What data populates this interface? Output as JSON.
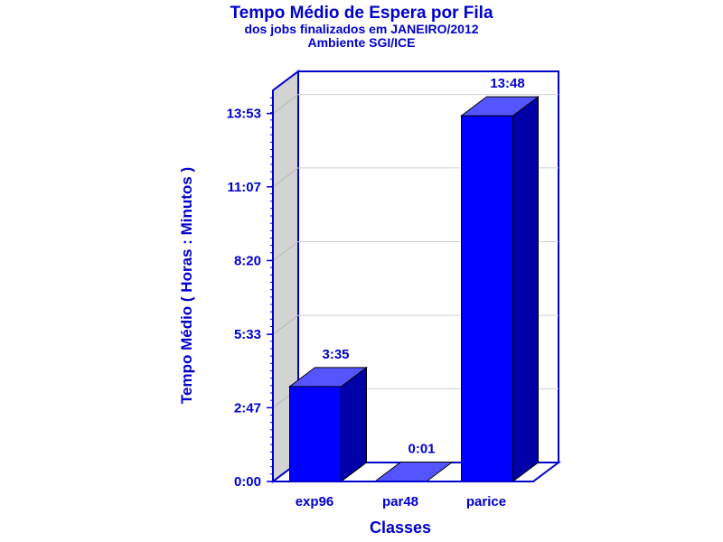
{
  "chart_data": {
    "type": "bar",
    "title": "Tempo Médio de Espera por Fila",
    "subtitle": "dos jobs finalizados em JANEIRO/2012",
    "subtitle2": "Ambiente SGI/ICE",
    "xlabel": "Classes",
    "ylabel": "Tempo Médio ( Horas : Minutos )",
    "categories": [
      "exp96",
      "par48",
      "parice"
    ],
    "values": [
      215,
      1,
      828
    ],
    "value_labels": [
      "3:35",
      "0:01",
      "13:48"
    ],
    "yticks": [
      {
        "value": 0,
        "label": "0:00"
      },
      {
        "value": 167,
        "label": "2:47"
      },
      {
        "value": 333,
        "label": "5:33"
      },
      {
        "value": 500,
        "label": "8:20"
      },
      {
        "value": 667,
        "label": "11:07"
      },
      {
        "value": 833,
        "label": "13:53"
      }
    ],
    "ylim": [
      0,
      880
    ],
    "grid": true,
    "colors": {
      "front": "#0000ff",
      "top": "#5555ff",
      "side": "#0000a8",
      "axis": "#0000cc",
      "wall": "#d3d3d3",
      "grid": "#d0d0d0"
    }
  }
}
